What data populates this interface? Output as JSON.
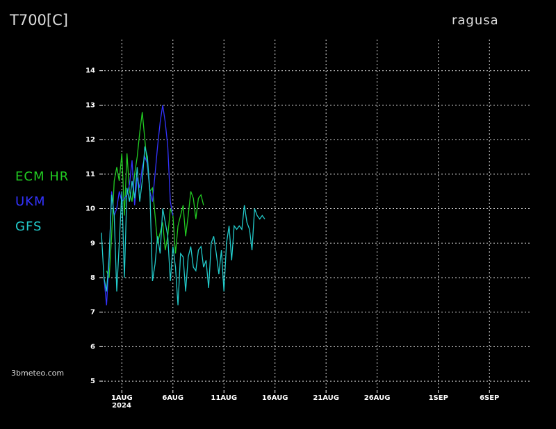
{
  "chart_data": {
    "type": "line",
    "title": "T700[C]",
    "subtitle": "ragusa",
    "source": "3bmeteo.com",
    "x_sublabel": "2024",
    "xlim": [
      -2.2,
      40
    ],
    "ylim": [
      4.78,
      14.9
    ],
    "xticks": [
      {
        "value": 0,
        "label": "1AUG"
      },
      {
        "value": 5,
        "label": "6AUG"
      },
      {
        "value": 10,
        "label": "11AUG"
      },
      {
        "value": 15,
        "label": "16AUG"
      },
      {
        "value": 20,
        "label": "21AUG"
      },
      {
        "value": 25,
        "label": "26AUG"
      },
      {
        "value": 31,
        "label": "1SEP"
      },
      {
        "value": 36,
        "label": "6SEP"
      }
    ],
    "yticks": [
      5,
      6,
      7,
      8,
      9,
      10,
      11,
      12,
      13,
      14
    ],
    "grid": true,
    "series": [
      {
        "name": "ECM HR",
        "color": "#22cc22",
        "x": [
          -1.5,
          -1.25,
          -1,
          -0.75,
          -0.5,
          -0.25,
          0,
          0.25,
          0.5,
          0.75,
          1,
          1.25,
          1.5,
          1.75,
          2,
          2.25,
          2.5,
          2.75,
          3,
          3.25,
          3.5,
          3.75,
          4,
          4.25,
          4.5,
          4.75,
          5,
          5.25,
          5.5,
          5.75,
          6,
          6.25,
          6.5,
          6.75,
          7,
          7.25,
          7.5,
          7.75,
          8
        ],
        "values": [
          8.2,
          8.0,
          9.2,
          10.8,
          11.2,
          10.8,
          11.6,
          9.8,
          11.6,
          10.5,
          10.2,
          11.0,
          11.5,
          12.2,
          12.8,
          12.0,
          11.2,
          10.5,
          10.6,
          9.8,
          9.0,
          9.3,
          9.6,
          8.8,
          9.2,
          10.0,
          9.8,
          8.7,
          9.5,
          9.8,
          10.1,
          9.2,
          9.8,
          10.5,
          10.3,
          9.7,
          10.3,
          10.4,
          10.1
        ]
      },
      {
        "name": "UKM",
        "color": "#3333ff",
        "x": [
          -1.75,
          -1.5,
          -1.25,
          -1,
          -0.75,
          -0.5,
          -0.25,
          0,
          0.25,
          0.5,
          0.75,
          1,
          1.25,
          1.5,
          1.75,
          2,
          2.25,
          2.5,
          2.75,
          3,
          3.25,
          3.5,
          3.75,
          4,
          4.25,
          4.5,
          4.75,
          5
        ],
        "values": [
          8.0,
          7.2,
          8.5,
          10.5,
          9.8,
          10.0,
          10.5,
          10.2,
          10.3,
          10.4,
          10.7,
          11.4,
          10.1,
          10.9,
          10.6,
          11.2,
          11.5,
          11.3,
          10.5,
          10.2,
          11.0,
          11.8,
          12.5,
          13.0,
          12.5,
          11.8,
          10.2,
          9.8
        ]
      },
      {
        "name": "GFS",
        "color": "#22cccc",
        "x": [
          -2,
          -1.75,
          -1.5,
          -1.25,
          -1,
          -0.75,
          -0.5,
          -0.25,
          0,
          0.25,
          0.5,
          0.75,
          1,
          1.25,
          1.5,
          1.75,
          2,
          2.25,
          2.5,
          2.75,
          3,
          3.25,
          3.5,
          3.75,
          4,
          4.25,
          4.5,
          4.75,
          5,
          5.25,
          5.5,
          5.75,
          6,
          6.25,
          6.5,
          6.75,
          7,
          7.25,
          7.5,
          7.75,
          8,
          8.25,
          8.5,
          8.75,
          9,
          9.25,
          9.5,
          9.75,
          10,
          10.25,
          10.5,
          10.75,
          11,
          11.25,
          11.5,
          11.75,
          12,
          12.25,
          12.5,
          12.75,
          13,
          13.25,
          13.5,
          13.75,
          14
        ],
        "values": [
          9.3,
          8.0,
          7.6,
          8.6,
          10.4,
          9.8,
          7.6,
          9.0,
          10.5,
          8.0,
          10.6,
          10.2,
          10.8,
          10.3,
          11.2,
          10.2,
          10.8,
          11.8,
          11.5,
          10.5,
          7.9,
          8.4,
          9.2,
          8.7,
          10.0,
          9.6,
          9.2,
          7.9,
          8.9,
          8.3,
          7.2,
          8.7,
          8.6,
          7.6,
          8.6,
          8.9,
          8.3,
          8.2,
          8.8,
          8.9,
          8.3,
          8.5,
          7.7,
          9.0,
          9.2,
          8.7,
          8.1,
          8.8,
          7.6,
          9.0,
          9.5,
          8.5,
          9.5,
          9.4,
          9.5,
          9.4,
          10.1,
          9.6,
          9.4,
          8.8,
          10.0,
          9.8,
          9.7,
          9.8,
          9.7
        ]
      }
    ]
  }
}
